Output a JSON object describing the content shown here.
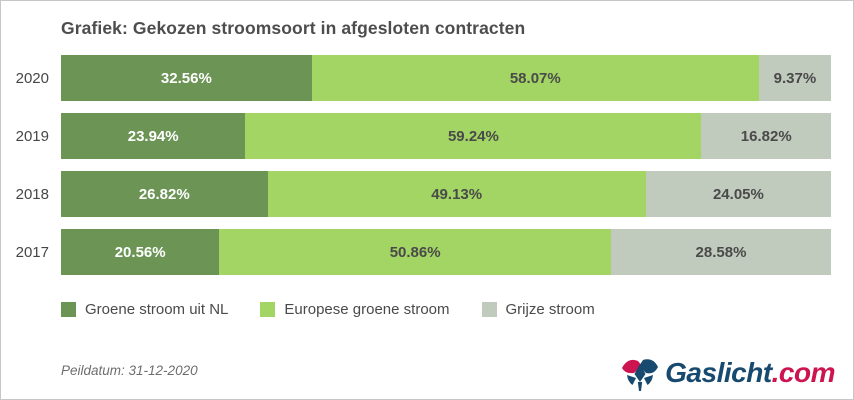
{
  "page": {
    "title": "Grafiek: Gekozen stroomsoort in afgesloten contracten",
    "footnote": "Peildatum: 31-12-2020"
  },
  "chart_data": {
    "type": "bar",
    "orientation": "horizontal-stacked",
    "unit": "%",
    "title": "Grafiek: Gekozen stroomsoort in afgesloten contracten",
    "categories": [
      "2020",
      "2019",
      "2018",
      "2017"
    ],
    "series": [
      {
        "id": "groene-stroom-uit-nl",
        "name": "Groene stroom uit NL",
        "color": "#6b9455",
        "label_color": "#ffffff",
        "values": [
          32.56,
          23.94,
          26.82,
          20.56
        ]
      },
      {
        "id": "europese-groene-stroom",
        "name": "Europese groene stroom",
        "color": "#a2d563",
        "label_color": "#4a4a4a",
        "values": [
          58.07,
          59.24,
          49.13,
          50.86
        ]
      },
      {
        "id": "grijze-stroom",
        "name": "Grijze stroom",
        "color": "#c0cbbd",
        "label_color": "#4a4a4a",
        "values": [
          9.37,
          16.82,
          24.05,
          28.58
        ]
      }
    ],
    "value_labels": [
      [
        "32.56%",
        "58.07%",
        "9.37%"
      ],
      [
        "23.94%",
        "59.24%",
        "16.82%"
      ],
      [
        "26.82%",
        "49.13%",
        "24.05%"
      ],
      [
        "20.56%",
        "50.86%",
        "28.58%"
      ]
    ],
    "xlim": [
      0,
      100
    ],
    "grid": false,
    "legend_position": "bottom"
  },
  "logo": {
    "name": "Gaslicht.com",
    "text_main": "Gaslicht",
    "text_suffix": ".com",
    "color_main": "#174a6e",
    "color_suffix": "#cc1450",
    "icon_red": "#cc1450",
    "icon_navy": "#174a6e"
  }
}
